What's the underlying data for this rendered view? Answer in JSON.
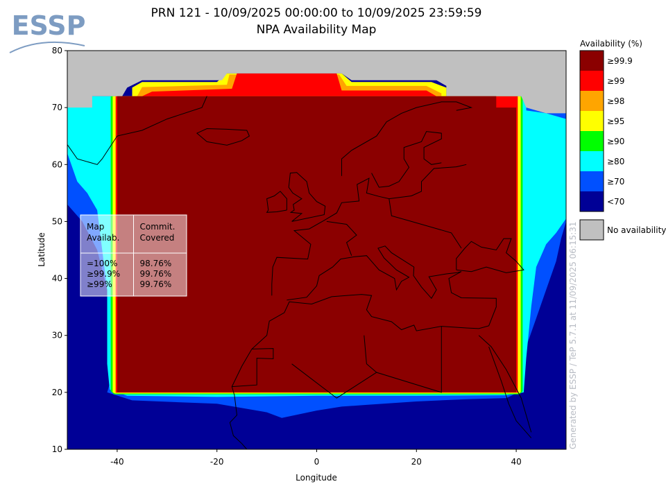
{
  "header": {
    "logo": "ESSP",
    "title_line1": "PRN 121 - 10/09/2025 00:00:00 to 10/09/2025 23:59:59",
    "title_line2": "NPA Availability Map"
  },
  "chart_data": {
    "type": "map",
    "x_label": "Longitude",
    "y_label": "Latitude",
    "xlim": [
      -50,
      50
    ],
    "ylim": [
      10,
      80
    ],
    "xticks": [
      -40,
      -20,
      0,
      20,
      40
    ],
    "yticks": [
      10,
      20,
      30,
      40,
      50,
      60,
      70,
      80
    ],
    "legend": {
      "title": "Availability (%)",
      "items": [
        {
          "label": "≥99.9",
          "color": "#8b0000"
        },
        {
          "label": "≥99",
          "color": "#ff0000"
        },
        {
          "label": "≥98",
          "color": "#ffa500"
        },
        {
          "label": "≥95",
          "color": "#ffff00"
        },
        {
          "label": "≥90",
          "color": "#00ff00"
        },
        {
          "label": "≥80",
          "color": "#00ffff"
        },
        {
          "label": "≥70",
          "color": "#0050ff"
        },
        {
          "label": "<70",
          "color": "#000096"
        }
      ],
      "no_data": {
        "label": "No availability",
        "color": "#c0c0c0"
      }
    },
    "summary_table": {
      "header": [
        [
          "Map",
          "Availab."
        ],
        [
          "Commit.",
          "Covered"
        ]
      ],
      "rows": [
        [
          "=100%",
          "98.76%"
        ],
        [
          "≥99.9%",
          "99.76%"
        ],
        [
          "≥99%",
          "99.76%"
        ]
      ]
    },
    "watermark": "Generated by ESSP / TeP 5.7.1 at 11/09/2025 06:15:31"
  }
}
